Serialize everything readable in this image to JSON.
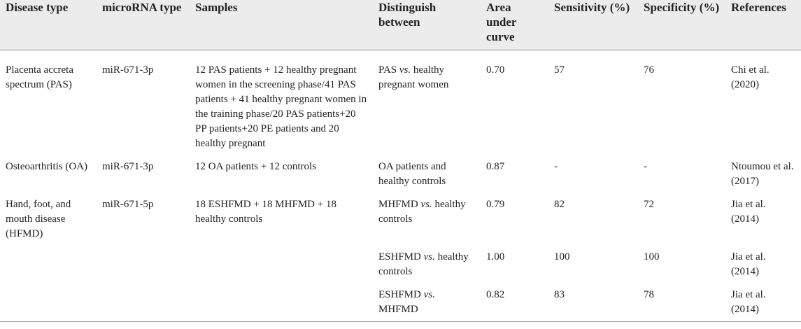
{
  "headers": [
    "Disease type",
    "microRNA type",
    "Samples",
    "Distinguish between",
    "Area under curve",
    "Sensitivity (%)",
    "Specificity (%)",
    "References"
  ],
  "rows": [
    {
      "disease": "Placenta accreta spectrum (PAS)",
      "mirna": "miR-671-3p",
      "samples": "12 PAS patients + 12 healthy pregnant women in the screening phase/41 PAS patients + 41 healthy pregnant women in the training phase/20 PAS patients+20 PP patients+20 PE patients and 20 healthy pregnant",
      "distinguish_pre": "PAS ",
      "distinguish_vs": "vs.",
      "distinguish_post": " healthy pregnant women",
      "auc": "0.70",
      "sensitivity": "57",
      "specificity": "76",
      "reference": "Chi et al. (2020)"
    },
    {
      "disease": "Osteoarthritis (OA)",
      "mirna": "miR-671-3p",
      "samples": "12 OA patients + 12 controls",
      "distinguish_pre": "OA patients and healthy controls",
      "distinguish_vs": "",
      "distinguish_post": "",
      "auc": "0.87",
      "sensitivity": "-",
      "specificity": "-",
      "reference": "Ntoumou et al. (2017)"
    },
    {
      "disease": "Hand, foot, and mouth disease (HFMD)",
      "mirna": "miR-671-5p",
      "samples": "18 ESHFMD + 18 MHFMD + 18 healthy controls",
      "distinguish_pre": "MHFMD ",
      "distinguish_vs": "vs.",
      "distinguish_post": " healthy controls",
      "auc": "0.79",
      "sensitivity": "82",
      "specificity": "72",
      "reference": "Jia et al. (2014)"
    },
    {
      "disease": "",
      "mirna": "",
      "samples": "",
      "distinguish_pre": "ESHFMD ",
      "distinguish_vs": "vs.",
      "distinguish_post": " healthy controls",
      "auc": "1.00",
      "sensitivity": "100",
      "specificity": "100",
      "reference": "Jia et al. (2014)"
    },
    {
      "disease": "",
      "mirna": "",
      "samples": "",
      "distinguish_pre": "ESHFMD ",
      "distinguish_vs": "vs.",
      "distinguish_post": " MHFMD",
      "auc": "0.82",
      "sensitivity": "83",
      "specificity": "78",
      "reference": "Jia et al. (2014)"
    }
  ]
}
